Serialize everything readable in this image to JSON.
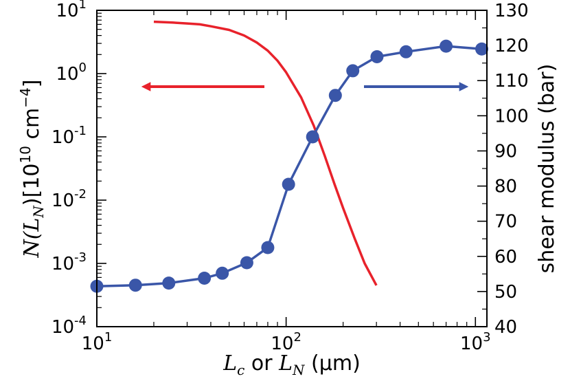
{
  "chart_data": {
    "type": "line",
    "title": "",
    "x_axis": {
      "label_parts": [
        "L",
        "c",
        " or ",
        "L",
        "N",
        " (μm)"
      ],
      "scale": "log",
      "range": [
        10,
        1150
      ],
      "major_ticks": [
        {
          "value": 10,
          "base": "10",
          "exp": "1"
        },
        {
          "value": 100,
          "base": "10",
          "exp": "2"
        },
        {
          "value": 1000,
          "base": "10",
          "exp": "3"
        }
      ]
    },
    "y_left": {
      "label_parts": [
        "N(L",
        "N",
        ")[10",
        "10",
        " cm",
        "−4",
        "]"
      ],
      "scale": "log",
      "range": [
        0.0001,
        10
      ],
      "major_ticks": [
        {
          "value": 0.0001,
          "base": "10",
          "exp": "-4"
        },
        {
          "value": 0.001,
          "base": "10",
          "exp": "-3"
        },
        {
          "value": 0.01,
          "base": "10",
          "exp": "-2"
        },
        {
          "value": 0.1,
          "base": "10",
          "exp": "-1"
        },
        {
          "value": 1,
          "base": "10",
          "exp": "0"
        },
        {
          "value": 10,
          "base": "10",
          "exp": "1"
        }
      ]
    },
    "y_right": {
      "label": "shear modulus (bar)",
      "scale": "linear",
      "range": [
        40,
        130
      ],
      "ticks": [
        "40",
        "50",
        "60",
        "70",
        "80",
        "90",
        "100",
        "110",
        "120",
        "130"
      ]
    },
    "series": [
      {
        "name": "N(L_N)",
        "axis": "left",
        "color": "#e8222b",
        "style": "line",
        "x": [
          20,
          25,
          30,
          35,
          40,
          50,
          60,
          70,
          80,
          90,
          100,
          120,
          140,
          160,
          180,
          200,
          230,
          260,
          300
        ],
        "y": [
          6.6,
          6.4,
          6.2,
          6.0,
          5.6,
          4.9,
          4.0,
          3.1,
          2.3,
          1.6,
          1.05,
          0.42,
          0.15,
          0.05,
          0.018,
          0.0075,
          0.0025,
          0.001,
          0.00045
        ]
      },
      {
        "name": "shear modulus",
        "axis": "right",
        "color": "#3a56a8",
        "style": "line+markers",
        "x": [
          10,
          16,
          24,
          37,
          46,
          62,
          80,
          103,
          138,
          182,
          225,
          302,
          430,
          700,
          1080
        ],
        "y": [
          51.5,
          51.8,
          52.4,
          53.8,
          55.2,
          58.2,
          62.5,
          80.5,
          94.0,
          105.8,
          112.8,
          116.8,
          118.2,
          119.8,
          119.0
        ]
      }
    ],
    "annotations": [
      {
        "type": "arrow",
        "direction": "left",
        "color": "#e8222b",
        "meaning": "left axis"
      },
      {
        "type": "arrow",
        "direction": "right",
        "color": "#3a56a8",
        "meaning": "right axis"
      }
    ]
  }
}
